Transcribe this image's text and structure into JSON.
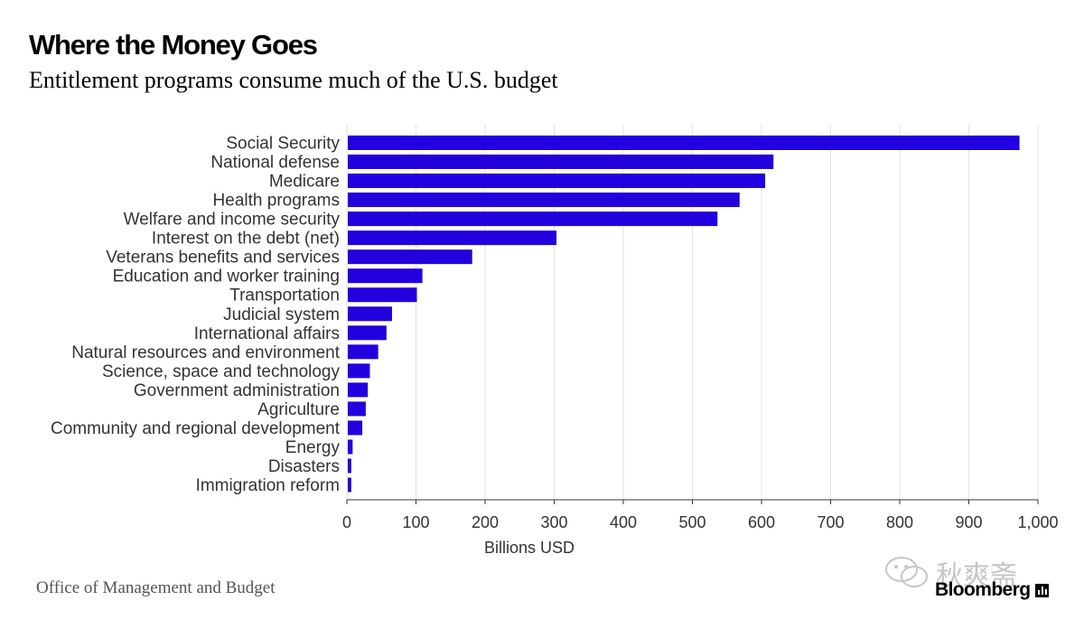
{
  "chart_data": {
    "type": "bar",
    "orientation": "horizontal",
    "title": "Where the Money Goes",
    "subtitle": "Entitlement programs consume much of the U.S. budget",
    "xlabel": "Billions USD",
    "ylabel": "",
    "xlim": [
      0,
      1000
    ],
    "xticks": [
      0,
      100,
      200,
      300,
      400,
      500,
      600,
      700,
      800,
      900,
      1000
    ],
    "xtick_labels": [
      "0",
      "100",
      "200",
      "300",
      "400",
      "500",
      "600",
      "700",
      "800",
      "900",
      "1,000"
    ],
    "grid": "vertical",
    "bar_color": "#2200dd",
    "categories": [
      "Social Security",
      "National defense",
      "Medicare",
      "Health programs",
      "Welfare and income security",
      "Interest on the debt (net)",
      "Veterans benefits and services",
      "Education and worker training",
      "Transportation",
      "Judicial system",
      "International affairs",
      "Natural resources and environment",
      "Science, space and technology",
      "Government administration",
      "Agriculture",
      "Community and regional development",
      "Energy",
      "Disasters",
      "Immigration reform"
    ],
    "values": [
      972,
      616,
      604,
      567,
      535,
      302,
      180,
      108,
      100,
      64,
      56,
      44,
      32,
      29,
      26,
      21,
      7,
      5,
      5
    ]
  },
  "source": "Office of Management and Budget",
  "brand": "Bloomberg",
  "watermark": "秋爽斋",
  "colors": {
    "bar": "#2200dd",
    "grid": "#e2e2e2",
    "axis": "#333333",
    "label": "#333333"
  }
}
